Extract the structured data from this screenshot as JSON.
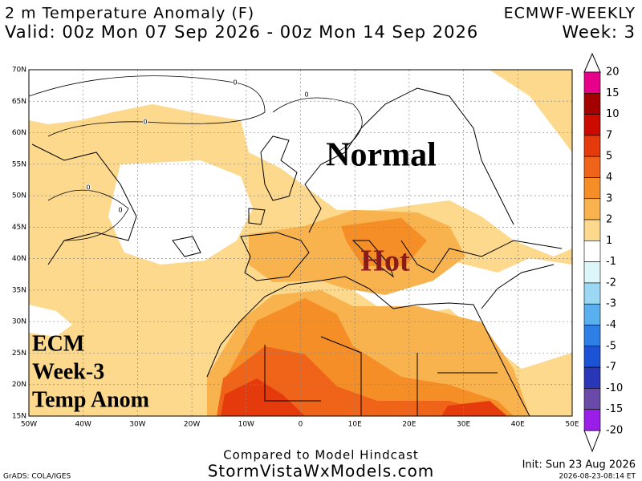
{
  "header": {
    "title": "2 m Temperature Anomaly (F)",
    "model": "ECMWF-WEEKLY",
    "valid": "Valid: 00z Mon 07 Sep 2026 - 00z Mon 14 Sep 2026",
    "week": "Week: 3"
  },
  "map": {
    "lat_labels": [
      "70N",
      "65N",
      "60N",
      "55N",
      "50N",
      "45N",
      "40N",
      "35N",
      "30N",
      "25N",
      "20N",
      "15N"
    ],
    "lon_labels": [
      "50W",
      "40W",
      "30W",
      "20W",
      "10W",
      "0",
      "10E",
      "20E",
      "30E",
      "40E",
      "50E"
    ],
    "annotations": {
      "normal": "Normal",
      "hot": "Hot"
    },
    "label_lines": [
      "ECM",
      "Week-3",
      "Temp Anom"
    ],
    "contour_labels": [
      "0",
      "0",
      "0",
      "0",
      "0"
    ]
  },
  "colorbar": {
    "levels": [
      20,
      15,
      10,
      7,
      5,
      4,
      3,
      2,
      1,
      -1,
      -2,
      -3,
      -4,
      -5,
      -7,
      -10,
      -15,
      -20
    ],
    "colors": [
      "#e6008a",
      "#a50000",
      "#cc0a00",
      "#e43a0c",
      "#ef6418",
      "#f58e26",
      "#f8b24e",
      "#fcd98c",
      "#ffffff",
      "#dcf6fa",
      "#9cd8f4",
      "#5ab0ee",
      "#2e7ee6",
      "#1c52d6",
      "#2a36b8",
      "#6a4aa8",
      "#9a1ee8"
    ]
  },
  "footer": {
    "compare": "Compared to Model Hindcast",
    "site": "StormVistaWxModels.com",
    "init": "Init: Sun 23 Aug 2026",
    "grads": "GrADS: COLA/IGES",
    "stamp": "2026-08-23-08:14 ET"
  }
}
